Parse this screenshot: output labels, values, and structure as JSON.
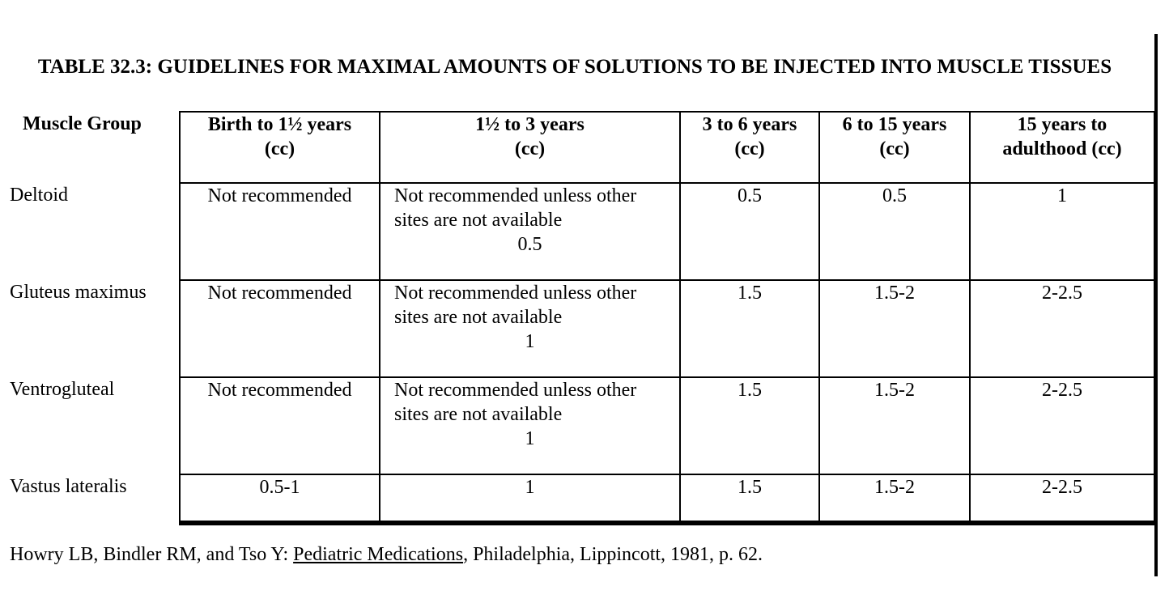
{
  "title": "TABLE 32.3: GUIDELINES FOR MAXIMAL AMOUNTS OF SOLUTIONS TO BE INJECTED INTO MUSCLE TISSUES",
  "columns": {
    "muscle": "Muscle Group",
    "c1_line1": "Birth to 1½ years",
    "c1_line2": "(cc)",
    "c2_line1": "1½ to 3 years",
    "c2_line2": "(cc)",
    "c3_line1": "3 to 6 years",
    "c3_line2": "(cc)",
    "c4_line1": "6 to 15 years",
    "c4_line2": "(cc)",
    "c5_line1": "15 years to",
    "c5_line2": "adulthood (cc)"
  },
  "rows": [
    {
      "muscle": "Deltoid",
      "birth": "Not recommended",
      "toddler_note_1": "Not recommended unless other",
      "toddler_note_2": "sites are not available",
      "toddler_value": "0.5",
      "age3to6": "0.5",
      "age6to15": "0.5",
      "adult": "1"
    },
    {
      "muscle": "Gluteus maximus",
      "birth": "Not recommended",
      "toddler_note_1": "Not recommended unless other",
      "toddler_note_2": "sites are not available",
      "toddler_value": "1",
      "age3to6": "1.5",
      "age6to15": "1.5-2",
      "adult": "2-2.5"
    },
    {
      "muscle": "Ventrogluteal",
      "birth": "Not recommended",
      "toddler_note_1": "Not recommended unless other",
      "toddler_note_2": "sites are not available",
      "toddler_value": "1",
      "age3to6": "1.5",
      "age6to15": "1.5-2",
      "adult": "2-2.5"
    },
    {
      "muscle": "Vastus lateralis",
      "birth": "0.5-1",
      "toddler_value": "1",
      "age3to6": "1.5",
      "age6to15": "1.5-2",
      "adult": "2-2.5"
    }
  ],
  "citation": {
    "authors": "Howry LB, Bindler RM, and Tso Y:  ",
    "book": "Pediatric Medications",
    "rest": ", Philadelphia, Lippincott, 1981, p. 62."
  }
}
